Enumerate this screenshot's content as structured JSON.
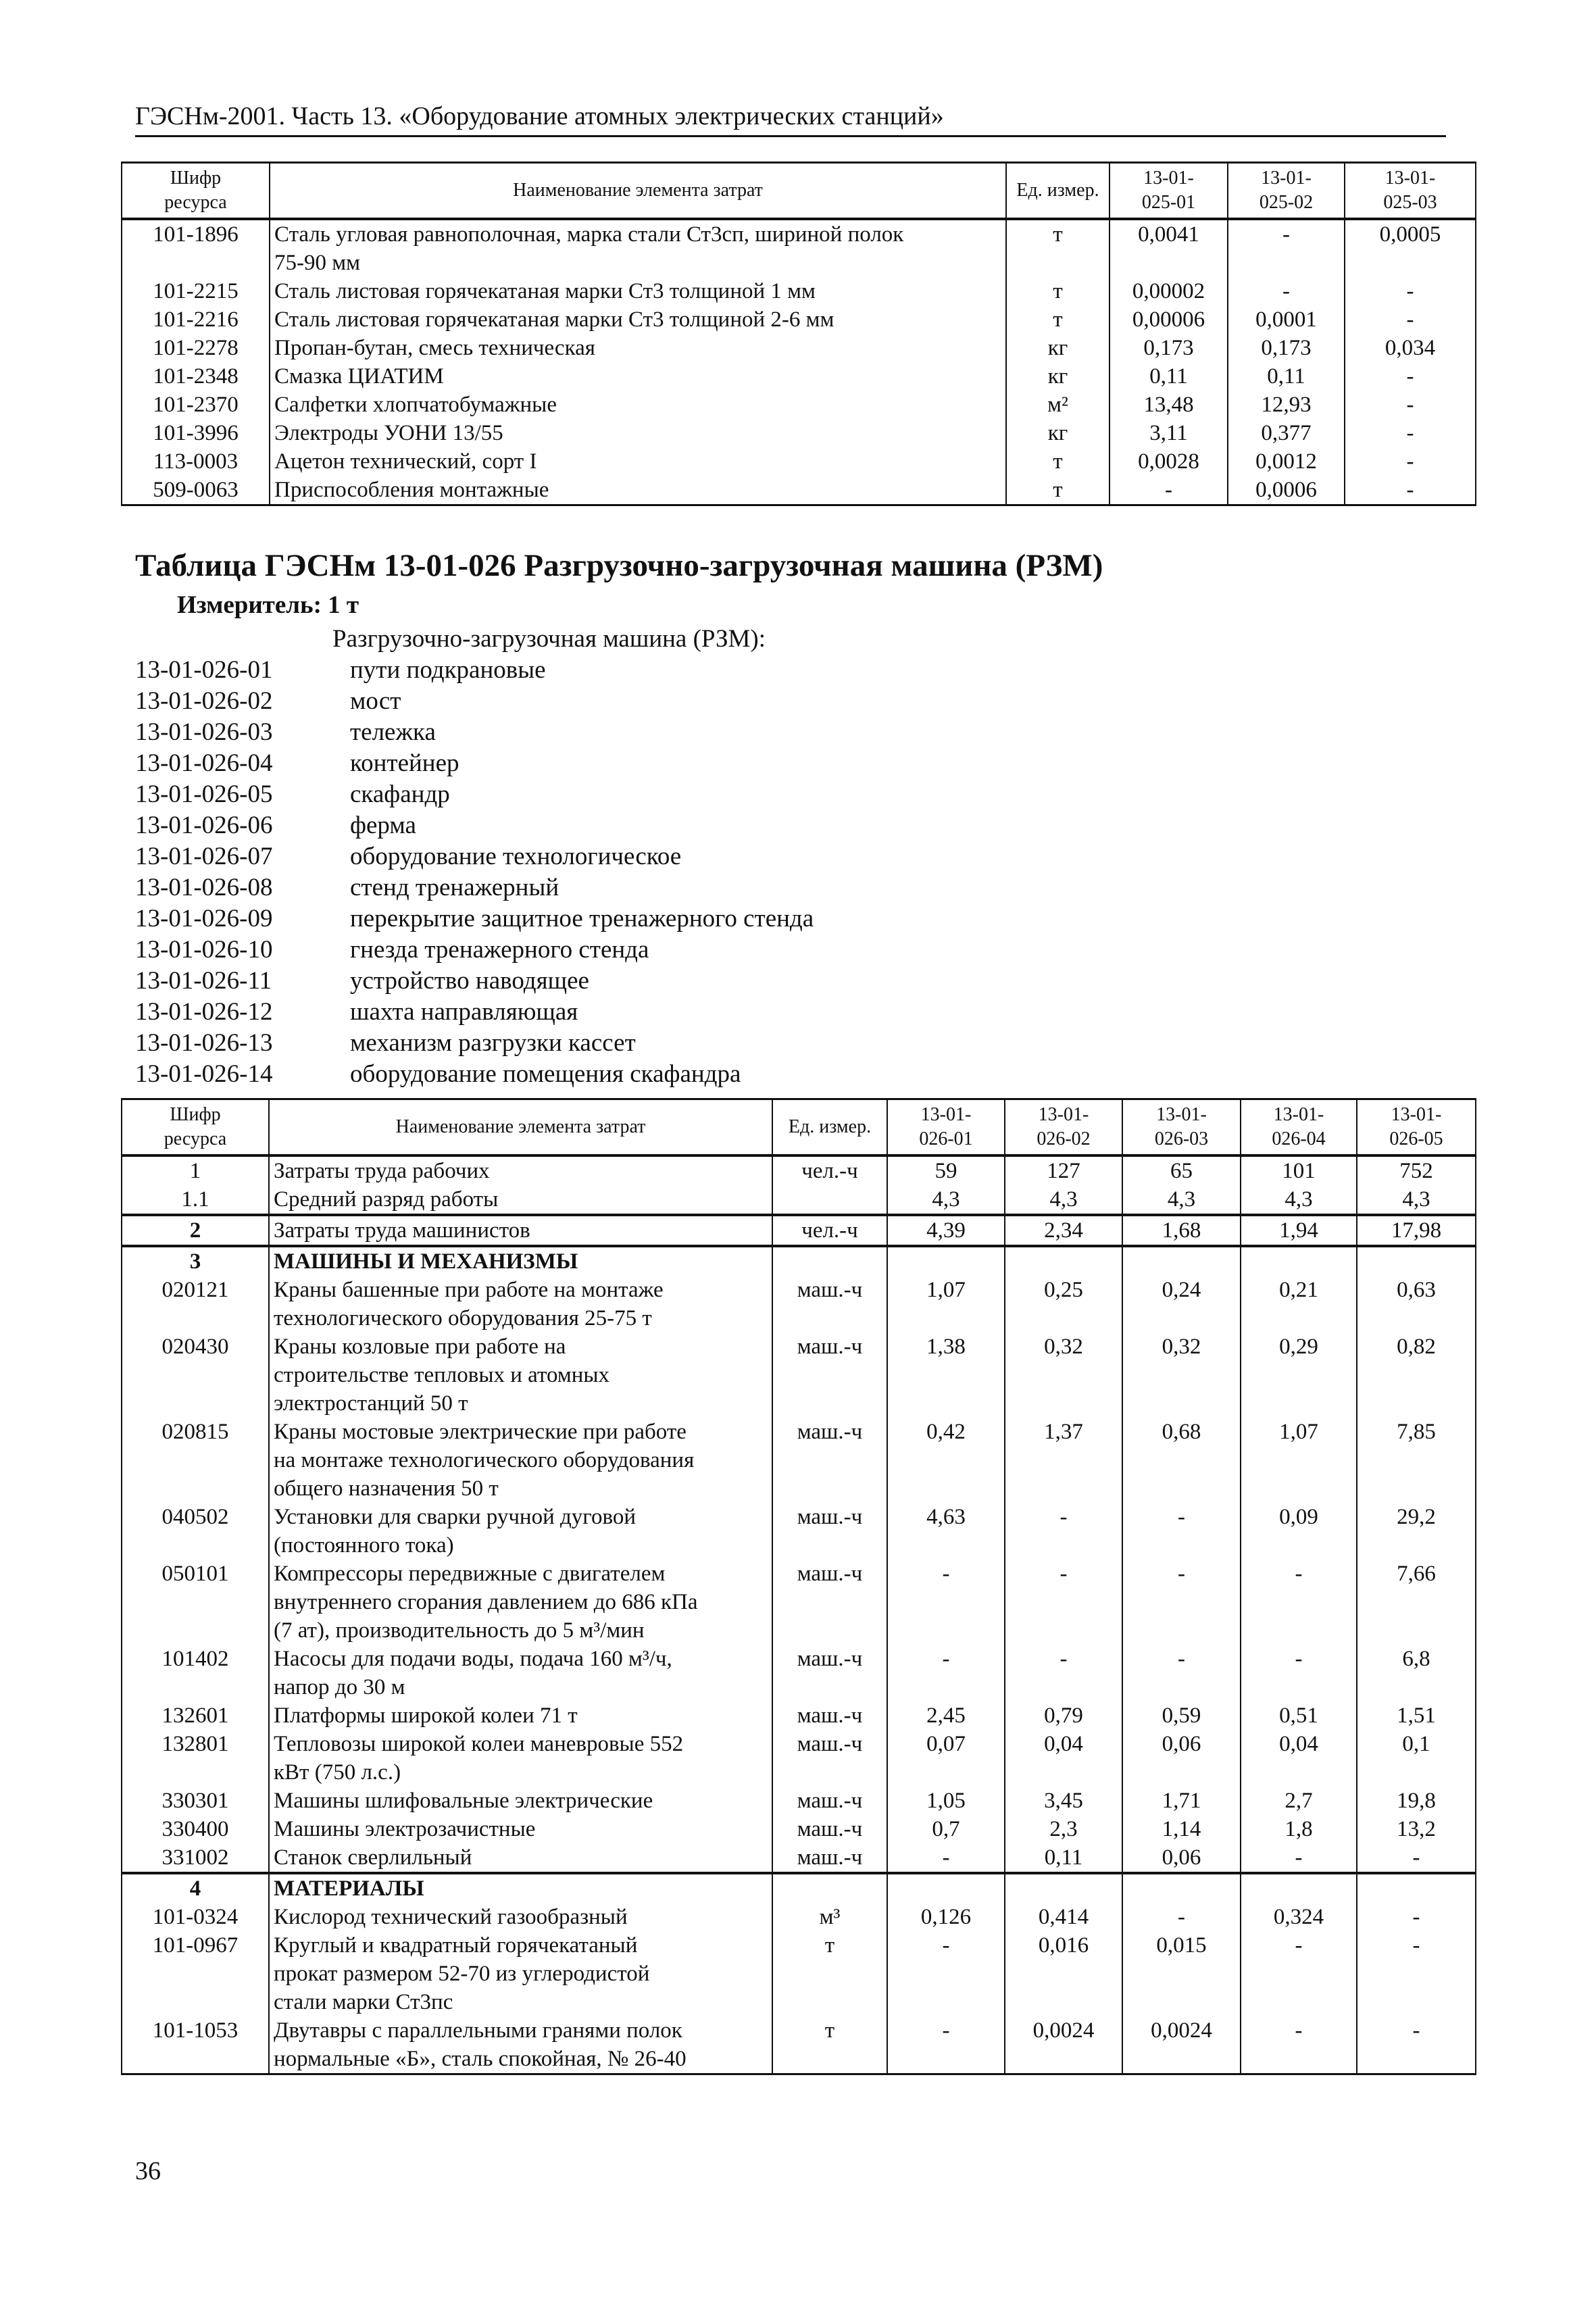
{
  "header": {
    "running_title": "ГЭСНм-2001. Часть 13. «Оборудование атомных электрических станций»"
  },
  "table1": {
    "columns": [
      "Шифр\nресурса",
      "Наименование элемента затрат",
      "Ед. измер.",
      "13-01-\n025-01",
      "13-01-\n025-02",
      "13-01-\n025-03"
    ],
    "rows": [
      {
        "code": "101-1896",
        "name": "Сталь угловая равнополочная, марка стали Ст3сп, шириной полок\n75-90 мм",
        "unit": "т",
        "values": [
          "0,0041",
          "-",
          "0,0005"
        ]
      },
      {
        "code": "101-2215",
        "name": "Сталь листовая горячекатаная марки Ст3 толщиной 1 мм",
        "unit": "т",
        "values": [
          "0,00002",
          "-",
          "-"
        ]
      },
      {
        "code": "101-2216",
        "name": "Сталь листовая горячекатаная марки Ст3 толщиной 2-6 мм",
        "unit": "т",
        "values": [
          "0,00006",
          "0,0001",
          "-"
        ]
      },
      {
        "code": "101-2278",
        "name": "Пропан-бутан, смесь техническая",
        "unit": "кг",
        "values": [
          "0,173",
          "0,173",
          "0,034"
        ]
      },
      {
        "code": "101-2348",
        "name": "Смазка ЦИАТИМ",
        "unit": "кг",
        "values": [
          "0,11",
          "0,11",
          "-"
        ]
      },
      {
        "code": "101-2370",
        "name": "Салфетки хлопчатобумажные",
        "unit": "м²",
        "values": [
          "13,48",
          "12,93",
          "-"
        ]
      },
      {
        "code": "101-3996",
        "name": "Электроды УОНИ 13/55",
        "unit": "кг",
        "values": [
          "3,11",
          "0,377",
          "-"
        ]
      },
      {
        "code": "113-0003",
        "name": "Ацетон технический, сорт I",
        "unit": "т",
        "values": [
          "0,0028",
          "0,0012",
          "-"
        ]
      },
      {
        "code": "509-0063",
        "name": "Приспособления монтажные",
        "unit": "т",
        "values": [
          "-",
          "0,0006",
          "-"
        ]
      }
    ]
  },
  "section": {
    "title": "Таблица ГЭСНм 13-01-026 Разгрузочно-загрузочная машина (РЗМ)",
    "meter": "Измеритель: 1 т",
    "list_intro": "Разгрузочно-загрузочная машина (РЗМ):",
    "items": [
      {
        "code": "13-01-026-01",
        "name": "пути подкрановые"
      },
      {
        "code": "13-01-026-02",
        "name": "мост"
      },
      {
        "code": "13-01-026-03",
        "name": "тележка"
      },
      {
        "code": "13-01-026-04",
        "name": "контейнер"
      },
      {
        "code": "13-01-026-05",
        "name": "скафандр"
      },
      {
        "code": "13-01-026-06",
        "name": "ферма"
      },
      {
        "code": "13-01-026-07",
        "name": "оборудование технологическое"
      },
      {
        "code": "13-01-026-08",
        "name": "стенд тренажерный"
      },
      {
        "code": "13-01-026-09",
        "name": "перекрытие защитное тренажерного стенда"
      },
      {
        "code": "13-01-026-10",
        "name": "гнезда тренажерного стенда"
      },
      {
        "code": "13-01-026-11",
        "name": "устройство наводящее"
      },
      {
        "code": "13-01-026-12",
        "name": "шахта направляющая"
      },
      {
        "code": "13-01-026-13",
        "name": "механизм разгрузки кассет"
      },
      {
        "code": "13-01-026-14",
        "name": "оборудование помещения скафандра"
      }
    ]
  },
  "table2": {
    "columns": [
      "Шифр\nресурса",
      "Наименование элемента затрат",
      "Ед. измер.",
      "13-01-\n026-01",
      "13-01-\n026-02",
      "13-01-\n026-03",
      "13-01-\n026-04",
      "13-01-\n026-05"
    ],
    "rows": [
      {
        "code": "1",
        "name": "Затраты труда рабочих",
        "unit": "чел.-ч",
        "values": [
          "59",
          "127",
          "65",
          "101",
          "752"
        ]
      },
      {
        "code": "1.1",
        "name": "Средний разряд работы",
        "unit": "",
        "values": [
          "4,3",
          "4,3",
          "4,3",
          "4,3",
          "4,3"
        ]
      },
      {
        "code": "2",
        "name": "Затраты труда машинистов",
        "unit": "чел.-ч",
        "values": [
          "4,39",
          "2,34",
          "1,68",
          "1,94",
          "17,98"
        ],
        "group_start": true,
        "bold_code": true
      },
      {
        "code": "3",
        "name": "МАШИНЫ И МЕХАНИЗМЫ",
        "unit": "",
        "values": [
          "",
          "",
          "",
          "",
          ""
        ],
        "group_start": true,
        "heading": true
      },
      {
        "code": "020121",
        "name": "Краны башенные при работе на монтаже\nтехнологического оборудования 25-75 т",
        "unit": "маш.-ч",
        "values": [
          "1,07",
          "0,25",
          "0,24",
          "0,21",
          "0,63"
        ]
      },
      {
        "code": "020430",
        "name": "Краны козловые при работе на\nстроительстве тепловых и атомных\nэлектростанций 50 т",
        "unit": "маш.-ч",
        "values": [
          "1,38",
          "0,32",
          "0,32",
          "0,29",
          "0,82"
        ]
      },
      {
        "code": "020815",
        "name": "Краны мостовые электрические при работе\nна монтаже технологического оборудования\nобщего назначения 50 т",
        "unit": "маш.-ч",
        "values": [
          "0,42",
          "1,37",
          "0,68",
          "1,07",
          "7,85"
        ]
      },
      {
        "code": "040502",
        "name": "Установки для сварки ручной дуговой\n(постоянного тока)",
        "unit": "маш.-ч",
        "values": [
          "4,63",
          "-",
          "-",
          "0,09",
          "29,2"
        ]
      },
      {
        "code": "050101",
        "name": "Компрессоры передвижные с двигателем\nвнутреннего сгорания давлением до 686 кПа\n(7 ат), производительность до 5 м³/мин",
        "unit": "маш.-ч",
        "values": [
          "-",
          "-",
          "-",
          "-",
          "7,66"
        ]
      },
      {
        "code": "101402",
        "name": "Насосы для подачи воды, подача 160 м³/ч,\nнапор до 30 м",
        "unit": "маш.-ч",
        "values": [
          "-",
          "-",
          "-",
          "-",
          "6,8"
        ]
      },
      {
        "code": "132601",
        "name": "Платформы широкой колеи 71 т",
        "unit": "маш.-ч",
        "values": [
          "2,45",
          "0,79",
          "0,59",
          "0,51",
          "1,51"
        ]
      },
      {
        "code": "132801",
        "name": "Тепловозы широкой колеи маневровые 552\nкВт (750 л.с.)",
        "unit": "маш.-ч",
        "values": [
          "0,07",
          "0,04",
          "0,06",
          "0,04",
          "0,1"
        ]
      },
      {
        "code": "330301",
        "name": "Машины шлифовальные электрические",
        "unit": "маш.-ч",
        "values": [
          "1,05",
          "3,45",
          "1,71",
          "2,7",
          "19,8"
        ]
      },
      {
        "code": "330400",
        "name": "Машины электрозачистные",
        "unit": "маш.-ч",
        "values": [
          "0,7",
          "2,3",
          "1,14",
          "1,8",
          "13,2"
        ]
      },
      {
        "code": "331002",
        "name": "Станок сверлильный",
        "unit": "маш.-ч",
        "values": [
          "-",
          "0,11",
          "0,06",
          "-",
          "-"
        ]
      },
      {
        "code": "4",
        "name": "МАТЕРИАЛЫ",
        "unit": "",
        "values": [
          "",
          "",
          "",
          "",
          ""
        ],
        "group_start": true,
        "heading": true
      },
      {
        "code": "101-0324",
        "name": "Кислород технический газообразный",
        "unit": "м³",
        "values": [
          "0,126",
          "0,414",
          "-",
          "0,324",
          "-"
        ]
      },
      {
        "code": "101-0967",
        "name": "Круглый и квадратный горячекатаный\nпрокат размером 52-70 из углеродистой\nстали марки Ст3пс",
        "unit": "т",
        "values": [
          "-",
          "0,016",
          "0,015",
          "-",
          "-"
        ]
      },
      {
        "code": "101-1053",
        "name": "Двутавры с параллельными гранями полок\nнормальные «Б», сталь спокойная, № 26-40",
        "unit": "т",
        "values": [
          "-",
          "0,0024",
          "0,0024",
          "-",
          "-"
        ]
      }
    ]
  },
  "footer": {
    "page_number": "36"
  }
}
